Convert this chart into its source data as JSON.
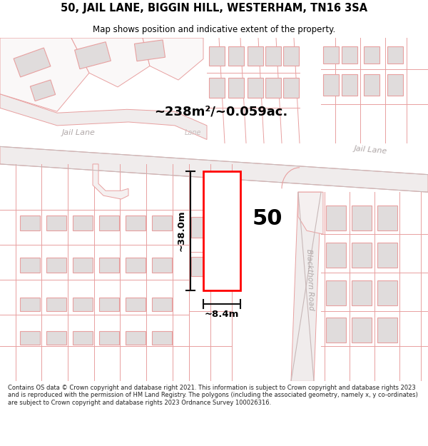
{
  "title": "50, JAIL LANE, BIGGIN HILL, WESTERHAM, TN16 3SA",
  "subtitle": "Map shows position and indicative extent of the property.",
  "footer": "Contains OS data © Crown copyright and database right 2021. This information is subject to Crown copyright and database rights 2023 and is reproduced with the permission of HM Land Registry. The polygons (including the associated geometry, namely x, y co-ordinates) are subject to Crown copyright and database rights 2023 Ordnance Survey 100026316.",
  "area_label": "~238m²/~0.059ac.",
  "width_label": "~8.4m",
  "height_label": "~38.0m",
  "property_number": "50",
  "bg_color": "#ffffff",
  "building_fill": "#e0dcdc",
  "road_fill": "#f0ecec",
  "line_color": "#e8a0a0",
  "road_line_color": "#c8a0a0",
  "jail_lane_color": "#c0b8b8",
  "text_color": "#000000",
  "street_color": "#b0a8a8",
  "red_color": "#ff0000",
  "measure_color": "#111111"
}
